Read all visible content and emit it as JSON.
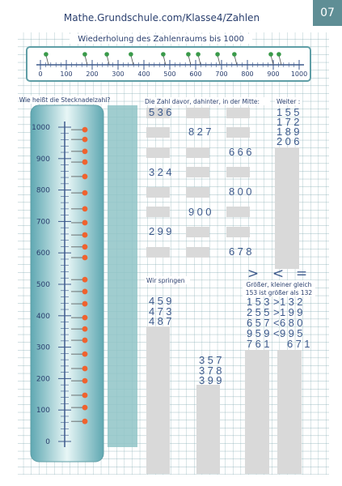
{
  "header": {
    "site": "Mathe.Grundschule.com/Klasse4/Zahlen",
    "page": "07"
  },
  "title": "Wiederholung des Zahlenraums bis 1000",
  "number_line": {
    "range": [
      0,
      1000
    ],
    "ticks": [
      0,
      100,
      200,
      300,
      400,
      500,
      600,
      700,
      800,
      900,
      1000
    ],
    "pins": [
      31,
      181,
      266,
      359,
      484,
      581,
      619,
      694,
      759,
      900,
      931
    ]
  },
  "stecknadel": {
    "label": "Wie heißt die Stecknadelzahl?",
    "range": [
      0,
      1000
    ],
    "ticks": [
      0,
      100,
      200,
      300,
      400,
      500,
      600,
      700,
      800,
      900,
      1000
    ],
    "pins": [
      992,
      961,
      923,
      889,
      843,
      791,
      740,
      696,
      657,
      619,
      585,
      515,
      477,
      438,
      394,
      358,
      322,
      278,
      232,
      193,
      147,
      108,
      64
    ]
  },
  "davor": {
    "label": "Die Zahl davor, dahinter, in der Mitte:",
    "numbers": [
      536,
      827,
      666,
      324,
      800,
      900,
      299,
      678
    ]
  },
  "weiter": {
    "label": "Weiter :",
    "numbers": [
      155,
      172,
      189,
      206
    ]
  },
  "springen": {
    "label": "Wir springen",
    "groups": [
      [
        459,
        473,
        487
      ],
      [
        357,
        378,
        399
      ]
    ]
  },
  "vergleich": {
    "symbols": [
      ">",
      "<",
      "="
    ],
    "label": "Größer, kleiner gleich",
    "example": "153 ist größer als 132",
    "rows": [
      [
        "153",
        ">",
        "132"
      ],
      [
        "255",
        ">",
        "199"
      ],
      [
        "657",
        "<",
        "680"
      ],
      [
        "959",
        "<",
        "995"
      ],
      [
        "761",
        "",
        "671"
      ]
    ]
  }
}
